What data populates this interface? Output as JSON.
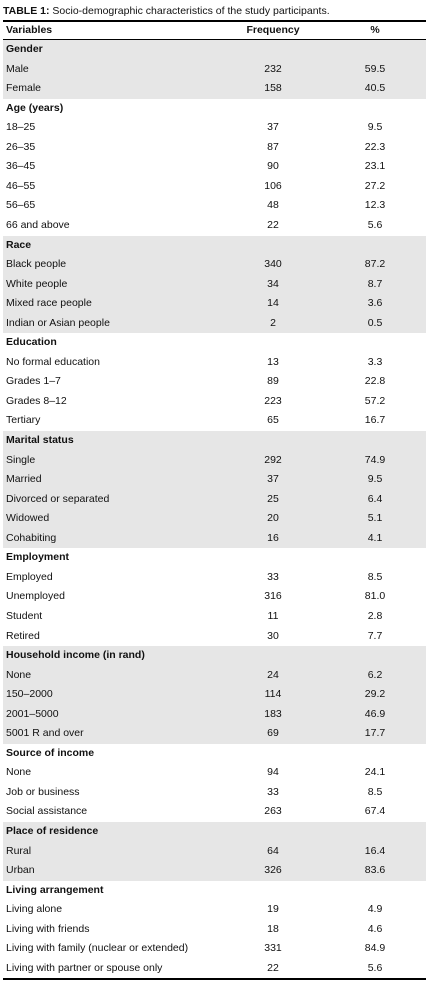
{
  "caption": {
    "label": "TABLE 1:",
    "text": "Socio-demographic characteristics of the study participants."
  },
  "table": {
    "columns": [
      "Variables",
      "Frequency",
      "%"
    ],
    "sections": [
      {
        "title": "Gender",
        "rows": [
          [
            "Male",
            232,
            59.5
          ],
          [
            "Female",
            158,
            40.5
          ]
        ]
      },
      {
        "title": "Age (years)",
        "rows": [
          [
            "18–25",
            37,
            9.5
          ],
          [
            "26–35",
            87,
            22.3
          ],
          [
            "36–45",
            90,
            23.1
          ],
          [
            "46–55",
            106,
            27.2
          ],
          [
            "56–65",
            48,
            12.3
          ],
          [
            "66 and above",
            22,
            5.6
          ]
        ]
      },
      {
        "title": "Race",
        "rows": [
          [
            "Black people",
            340,
            87.2
          ],
          [
            "White people",
            34,
            8.7
          ],
          [
            "Mixed race people",
            14,
            3.6
          ],
          [
            "Indian or Asian people",
            2,
            0.5
          ]
        ]
      },
      {
        "title": "Education",
        "rows": [
          [
            "No formal education",
            13,
            3.3
          ],
          [
            "Grades 1–7",
            89,
            22.8
          ],
          [
            "Grades 8–12",
            223,
            57.2
          ],
          [
            "Tertiary",
            65,
            16.7
          ]
        ]
      },
      {
        "title": "Marital status",
        "rows": [
          [
            "Single",
            292,
            74.9
          ],
          [
            "Married",
            37,
            9.5
          ],
          [
            "Divorced or separated",
            25,
            6.4
          ],
          [
            "Widowed",
            20,
            5.1
          ],
          [
            "Cohabiting",
            16,
            4.1
          ]
        ]
      },
      {
        "title": "Employment",
        "rows": [
          [
            "Employed",
            33,
            8.5
          ],
          [
            "Unemployed",
            316,
            {
              "value": 81,
              "label": "81.0"
            }
          ],
          [
            "Student",
            11,
            2.8
          ],
          [
            "Retired",
            30,
            7.7
          ]
        ]
      },
      {
        "title": "Household income (in rand)",
        "rows": [
          [
            "None",
            24,
            6.2
          ],
          [
            "150–2000",
            114,
            29.2
          ],
          [
            "2001–5000",
            183,
            46.9
          ],
          [
            "5001 R and over",
            69,
            17.7
          ]
        ]
      },
      {
        "title": "Source of income",
        "rows": [
          [
            "None",
            94,
            24.1
          ],
          [
            "Job or business",
            33,
            8.5
          ],
          [
            "Social assistance",
            263,
            67.4
          ]
        ]
      },
      {
        "title": "Place of residence",
        "rows": [
          [
            "Rural",
            64,
            16.4
          ],
          [
            "Urban",
            326,
            83.6
          ]
        ]
      },
      {
        "title": "Living arrangement",
        "rows": [
          [
            "Living alone",
            19,
            4.9
          ],
          [
            "Living with friends",
            18,
            4.6
          ],
          [
            "Living with family (nuclear or extended)",
            331,
            84.9
          ],
          [
            "Living with partner or spouse only",
            22,
            5.6
          ]
        ]
      }
    ]
  }
}
